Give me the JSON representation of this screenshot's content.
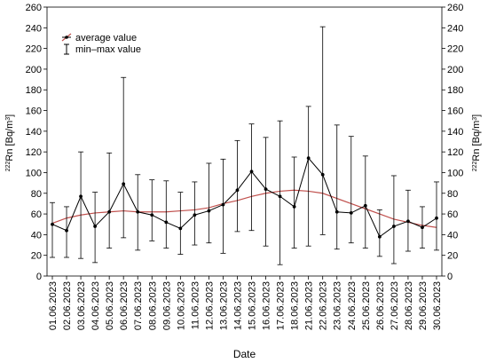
{
  "chart_data": {
    "type": "line",
    "xlabel": "Date",
    "ylabel_left": "222Rn [Bq/m3]",
    "ylabel_right": "222Rn [Bq/m3]",
    "ylabel_parts": {
      "iso": "222",
      "base": "Rn [Bq/m",
      "exp": "3",
      "close": "]"
    },
    "ylim": [
      0,
      260
    ],
    "yticks": [
      "0",
      "20",
      "40",
      "60",
      "80",
      "100",
      "120",
      "140",
      "160",
      "180",
      "200",
      "220",
      "240",
      "260"
    ],
    "legend": {
      "position": "top-left",
      "entries": [
        "average value",
        "min–max value"
      ]
    },
    "categories": [
      "01.06.2023",
      "02.06.2023",
      "03.06.2023",
      "04.06.2023",
      "05.06.2023",
      "06.06.2023",
      "07.06.2023",
      "08.06.2023",
      "09.06.2023",
      "10.06.2023",
      "11.06.2023",
      "12.06.2023",
      "13.06.2023",
      "14.06.2023",
      "15.06.2023",
      "16.06.2023",
      "17.06.2023",
      "18.06.2023",
      "21.06.2023",
      "22.06.2023",
      "23.06.2023",
      "24.06.2023",
      "25.06.2023",
      "26.06.2023",
      "27.06.2023",
      "28.06.2023",
      "29.06.2023",
      "30.06.2023"
    ],
    "series": [
      {
        "name": "average value",
        "values": [
          50,
          44,
          77,
          48,
          62,
          89,
          62,
          59,
          52,
          46,
          59,
          63,
          69,
          83,
          101,
          84,
          77,
          67,
          114,
          98,
          62,
          61,
          68,
          38,
          48,
          53,
          47,
          56
        ]
      },
      {
        "name": "min–max value",
        "min": [
          18,
          18,
          17,
          13,
          27,
          37,
          25,
          34,
          27,
          21,
          30,
          32,
          22,
          43,
          44,
          29,
          11,
          27,
          29,
          40,
          26,
          32,
          27,
          19,
          12,
          24,
          27,
          25
        ],
        "max": [
          71,
          67,
          120,
          81,
          119,
          192,
          98,
          93,
          92,
          81,
          91,
          109,
          113,
          131,
          147,
          134,
          150,
          115,
          164,
          241,
          146,
          135,
          116,
          64,
          97,
          83,
          67,
          91
        ]
      }
    ],
    "trend": {
      "values": [
        51,
        56,
        59,
        61,
        62,
        63,
        62,
        62,
        62,
        63,
        64,
        66,
        70,
        73,
        77,
        80,
        82,
        83,
        82,
        80,
        75,
        70,
        65,
        60,
        55,
        52,
        49,
        47
      ]
    },
    "colors": {
      "series": "#000000",
      "trend": "#c0504d",
      "axis": "#000000"
    }
  }
}
